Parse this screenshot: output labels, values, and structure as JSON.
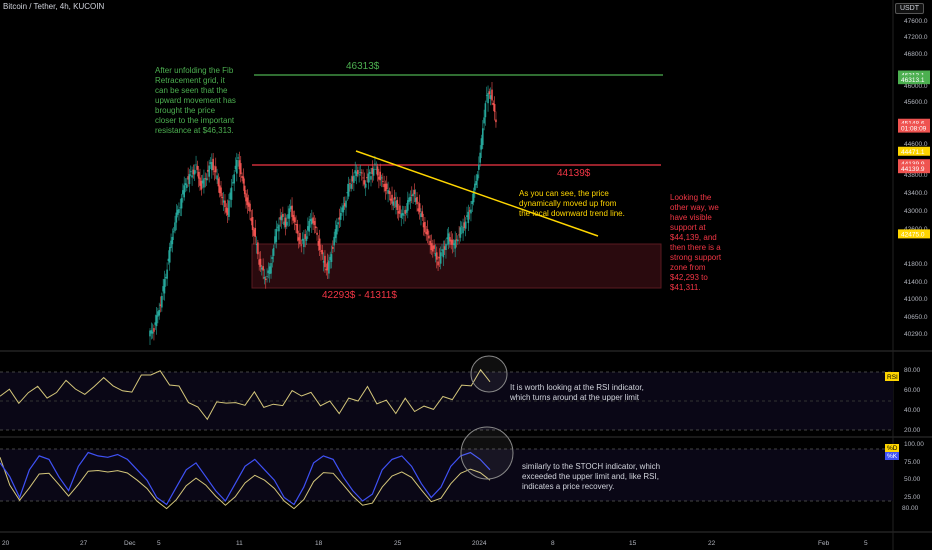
{
  "header": {
    "symbol_title": "Bitcoin / Tether, 4h, KUCOIN",
    "currency_button": "USDT"
  },
  "colors": {
    "resistance": "#4caf50",
    "support_line": "#f23645",
    "trend": "#ffd600",
    "zone_fill": "#2a0a0e",
    "candle_up": "#26a69a",
    "candle_down": "#ef5350",
    "rsi": "#d4c67a",
    "stoch_k": "#3f51f5"
  },
  "levels": {
    "resistance_label": "46313$",
    "support_label": "44139$",
    "zone_label": "42293$ - 41311$"
  },
  "annotations": {
    "fib": "After unfolding the Fib\nRetracement grid, it\ncan be seen that the\nupward movement has\nbrought the price\ncloser to the important\nresistance at $46,313.",
    "trend": "As you can see, the price\ndynamically moved up from\nthe local downward trend line.",
    "support": "Looking the\nother way, we\nhave visible\nsupport at\n$44,139, and\nthen there is a\nstrong support\nzone from\n$42,293 to\n$41,311.",
    "rsi": "It is worth looking at the RSI indicator,\nwhich turns around at the upper limit",
    "stoch": "similarly to the STOCH indicator, which\nexceeded the upper limit and, like RSI,\nindicates a price recovery."
  },
  "price_axis": [
    "47600.0",
    "47200.0",
    "46800.0",
    "46000.0",
    "45600.0",
    "44600.0",
    "43800.0",
    "43400.0",
    "43000.0",
    "42600.0",
    "41800.0",
    "41400.0",
    "41000.0",
    "40650.0",
    "40290.0"
  ],
  "price_tags": [
    {
      "text": "46313.1",
      "price": 46313,
      "color": "#4caf50"
    },
    {
      "text": "46313.1",
      "price": 46200,
      "color": "#4caf50"
    },
    {
      "text": "45148.6",
      "price": 45148,
      "color": "#ef5350"
    },
    {
      "text": "01:08:09",
      "price": 45030,
      "color": "#ef5350"
    },
    {
      "text": "44471.1",
      "price": 44471,
      "color": "#ffd600"
    },
    {
      "text": "44139.9",
      "price": 44170,
      "color": "#ef5350"
    },
    {
      "text": "44139.9",
      "price": 44050,
      "color": "#ef5350"
    },
    {
      "text": "42475.0",
      "price": 42475,
      "color": "#ffd600"
    }
  ],
  "rsi_axis": [
    "80.00",
    "60.00",
    "40.00",
    "20.00"
  ],
  "rsi_tag": "RSI",
  "stoch_axis": [
    "100.00",
    "75.00",
    "50.00",
    "25.00"
  ],
  "stoch_tag_d": "%D",
  "stoch_tag_k": "%K",
  "time_axis": [
    "20",
    "27",
    "Dec",
    "5",
    "11",
    "18",
    "25",
    "2024",
    "8",
    "15",
    "22",
    "Feb",
    "5"
  ],
  "bottom_tag": "80.00",
  "chart_data": {
    "type": "line",
    "title": "Bitcoin / Tether, 4h, KUCOIN",
    "price_series": [
      40200,
      40650,
      41300,
      42100,
      42800,
      43200,
      43700,
      43900,
      44100,
      43600,
      43900,
      44200,
      43800,
      43300,
      43000,
      43800,
      44300,
      43600,
      43100,
      42500,
      41800,
      41400,
      41600,
      42400,
      42900,
      42700,
      43100,
      42600,
      42200,
      42500,
      42900,
      42400,
      41900,
      41600,
      42200,
      42800,
      43100,
      43600,
      43900,
      44000,
      43700,
      43900,
      44100,
      43800,
      43600,
      43300,
      43200,
      42900,
      43100,
      43500,
      43200,
      42800,
      42400,
      42100,
      41800,
      42100,
      42400,
      42200,
      42500,
      42700,
      43000,
      43600,
      44400,
      45700,
      45900,
      45148
    ],
    "levels": [
      46313,
      44139,
      42293,
      41311
    ],
    "rsi_series": [
      55,
      62,
      48,
      58,
      66,
      52,
      60,
      70,
      64,
      55,
      67,
      72,
      68,
      58,
      62,
      74,
      80,
      78,
      70,
      62,
      52,
      40,
      35,
      45,
      52,
      44,
      50,
      55,
      48,
      42,
      50,
      56,
      60,
      54,
      50,
      45,
      42,
      48,
      55,
      60,
      52,
      46,
      42,
      48,
      44,
      40,
      46,
      50,
      56,
      62,
      70,
      78,
      74
    ],
    "stoch_series": [
      80,
      60,
      30,
      70,
      90,
      85,
      60,
      40,
      75,
      95,
      90,
      88,
      92,
      85,
      70,
      55,
      30,
      20,
      45,
      70,
      80,
      60,
      40,
      25,
      50,
      75,
      85,
      70,
      55,
      30,
      20,
      45,
      80,
      90,
      85,
      60,
      40,
      25,
      35,
      70,
      85,
      90,
      75,
      50,
      30,
      45,
      75,
      90,
      95,
      85,
      70
    ]
  }
}
